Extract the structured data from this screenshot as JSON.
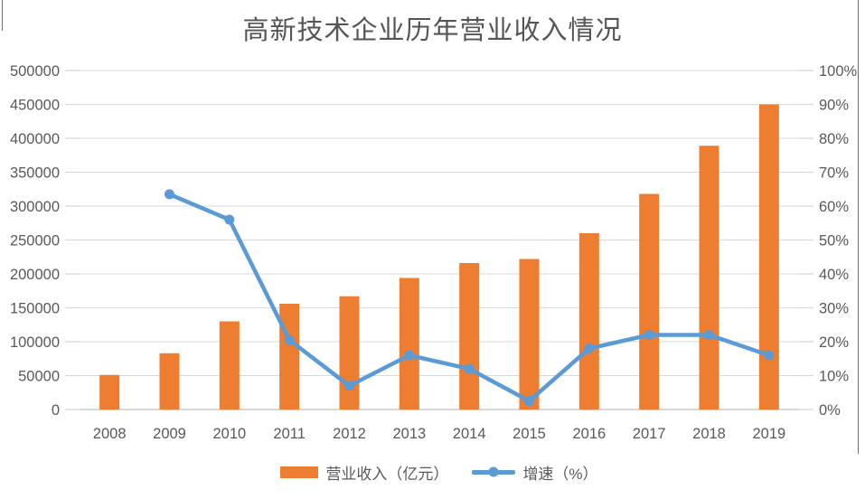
{
  "title": "高新技术企业历年营业收入情况",
  "chart_data": {
    "type": "combo-bar-line",
    "title": "高新技术企业历年营业收入情况",
    "categories": [
      "2008",
      "2009",
      "2010",
      "2011",
      "2012",
      "2013",
      "2014",
      "2015",
      "2016",
      "2017",
      "2018",
      "2019"
    ],
    "series": [
      {
        "name": "营业收入（亿元）",
        "type": "bar",
        "axis": "left",
        "color": "#ED7D31",
        "values": [
          51000,
          83000,
          130000,
          156000,
          167000,
          194000,
          216000,
          222000,
          260000,
          318000,
          389000,
          450000
        ]
      },
      {
        "name": "增速（%）",
        "type": "line",
        "axis": "right",
        "color": "#5B9BD5",
        "values": [
          null,
          63.5,
          56,
          20.5,
          7,
          16,
          12,
          2.5,
          18,
          22,
          22,
          16
        ]
      }
    ],
    "left_axis": {
      "min": 0,
      "max": 500000,
      "step": 50000,
      "tick_labels": [
        "0",
        "50000",
        "100000",
        "150000",
        "200000",
        "250000",
        "300000",
        "350000",
        "400000",
        "450000",
        "500000"
      ]
    },
    "right_axis": {
      "min": 0,
      "max": 100,
      "step": 10,
      "tick_labels": [
        "0%",
        "10%",
        "20%",
        "30%",
        "40%",
        "50%",
        "60%",
        "70%",
        "80%",
        "90%",
        "100%"
      ]
    },
    "grid": true,
    "legend_position": "bottom",
    "colors": {
      "gridline": "#D9D9D9",
      "axis_line": "#BFBFBF",
      "tick_text": "#595959",
      "title_text": "#555555"
    }
  }
}
